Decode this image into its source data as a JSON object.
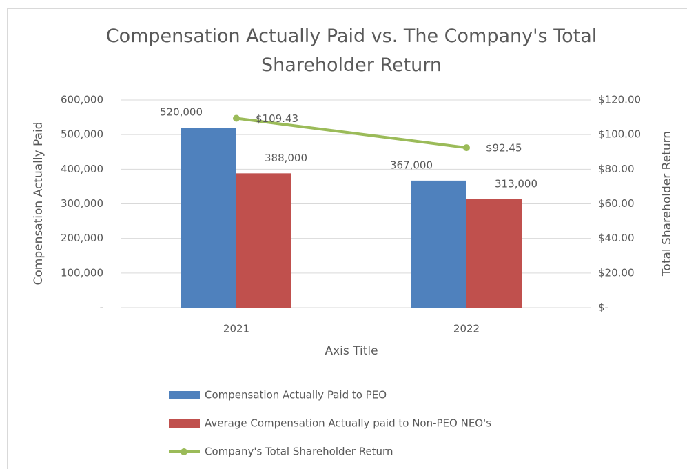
{
  "chart_data": {
    "type": "bar",
    "title": "Compensation  Actually Paid vs. The Company's Total Shareholder  Return",
    "categories": [
      "2021",
      "2022"
    ],
    "x_label": "Axis Title",
    "y_label": "Compensation Actually Paid",
    "y2_label": "Total Shareholder Return",
    "series": [
      {
        "name": "Compensation Actually Paid to PEO",
        "color": "#4f81bd",
        "values": [
          520000,
          367000
        ],
        "value_labels": [
          "520,000",
          "367,000"
        ]
      },
      {
        "name": "Average Compensation Actually paid to Non-PEO NEO's",
        "color": "#c0504d",
        "values": [
          388000,
          313000
        ],
        "value_labels": [
          "388,000",
          "313,000"
        ]
      },
      {
        "name": "Company's Total Shareholder Return",
        "color": "#9bbb59",
        "type": "line",
        "axis": "y2",
        "values": [
          109.43,
          92.45
        ],
        "value_labels": [
          "$109.43",
          "$92.45"
        ]
      }
    ],
    "ylim": [
      0,
      600000
    ],
    "yticks": [
      {
        "value": 0,
        "label": "-"
      },
      {
        "value": 100000,
        "label": "100,000"
      },
      {
        "value": 200000,
        "label": "200,000"
      },
      {
        "value": 300000,
        "label": "300,000"
      },
      {
        "value": 400000,
        "label": "400,000"
      },
      {
        "value": 500000,
        "label": "500,000"
      },
      {
        "value": 600000,
        "label": "600,000"
      }
    ],
    "y2lim": [
      0,
      120
    ],
    "y2ticks": [
      {
        "value": 0,
        "label": "$-"
      },
      {
        "value": 20,
        "label": "$20.00"
      },
      {
        "value": 40,
        "label": "$40.00"
      },
      {
        "value": 60,
        "label": "$60.00"
      },
      {
        "value": 80,
        "label": "$80.00"
      },
      {
        "value": 100,
        "label": "$100.00"
      },
      {
        "value": 120,
        "label": "$120.00"
      }
    ],
    "grid": true,
    "legend": "bottom"
  }
}
